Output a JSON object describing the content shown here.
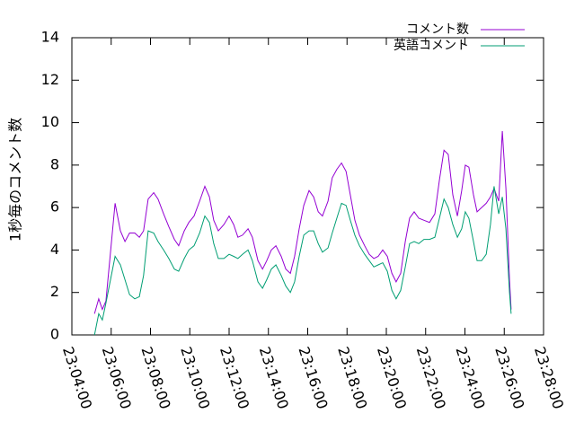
{
  "chart_data": {
    "type": "line",
    "ylabel": "1秒毎のコメント数",
    "x": [
      "23:05:09",
      "23:05:22",
      "23:05:33",
      "23:05:44",
      "23:06:12",
      "23:06:28",
      "23:06:42",
      "23:06:56",
      "23:07:12",
      "23:07:26",
      "23:07:39",
      "23:07:53",
      "23:08:10",
      "23:08:23",
      "23:08:40",
      "23:08:56",
      "23:09:13",
      "23:09:26",
      "23:09:43",
      "23:09:57",
      "23:10:13",
      "23:10:30",
      "23:10:46",
      "23:11:00",
      "23:11:13",
      "23:11:27",
      "23:11:44",
      "23:12:00",
      "23:12:14",
      "23:12:27",
      "23:12:41",
      "23:12:58",
      "23:13:11",
      "23:13:28",
      "23:13:42",
      "23:13:55",
      "23:14:09",
      "23:14:23",
      "23:14:39",
      "23:14:53",
      "23:15:07",
      "23:15:20",
      "23:15:34",
      "23:15:48",
      "23:16:04",
      "23:16:18",
      "23:16:32",
      "23:16:45",
      "23:17:02",
      "23:17:15",
      "23:17:29",
      "23:17:43",
      "23:17:57",
      "23:18:10",
      "23:18:24",
      "23:18:38",
      "23:18:54",
      "23:19:08",
      "23:19:22",
      "23:19:35",
      "23:19:49",
      "23:20:03",
      "23:20:17",
      "23:20:30",
      "23:20:44",
      "23:20:58",
      "23:21:11",
      "23:21:25",
      "23:21:39",
      "23:21:55",
      "23:22:12",
      "23:22:28",
      "23:22:42",
      "23:22:56",
      "23:23:09",
      "23:23:23",
      "23:23:37",
      "23:23:50",
      "23:24:01",
      "23:24:12",
      "23:24:26",
      "23:24:37",
      "23:24:51",
      "23:25:05",
      "23:25:18",
      "23:25:29",
      "23:25:43",
      "23:25:54",
      "23:26:05",
      "23:26:16",
      "23:26:21"
    ],
    "series": [
      {
        "name": "コメント数",
        "color": "#9400d3",
        "values": [
          1.0,
          1.7,
          1.2,
          1.6,
          6.2,
          4.9,
          4.4,
          4.8,
          4.8,
          4.6,
          4.9,
          6.4,
          6.7,
          6.4,
          5.7,
          5.1,
          4.5,
          4.2,
          4.9,
          5.3,
          5.6,
          6.3,
          7.0,
          6.5,
          5.4,
          4.9,
          5.2,
          5.6,
          5.2,
          4.6,
          4.7,
          5.0,
          4.6,
          3.5,
          3.1,
          3.5,
          4.0,
          4.2,
          3.7,
          3.1,
          2.9,
          3.7,
          5.0,
          6.1,
          6.8,
          6.5,
          5.8,
          5.6,
          6.3,
          7.4,
          7.8,
          8.1,
          7.7,
          6.6,
          5.4,
          4.7,
          4.2,
          3.8,
          3.6,
          3.7,
          4.0,
          3.7,
          2.9,
          2.5,
          2.9,
          4.4,
          5.5,
          5.8,
          5.5,
          5.4,
          5.3,
          5.7,
          7.3,
          8.7,
          8.5,
          6.6,
          5.6,
          6.8,
          8.0,
          7.9,
          6.6,
          5.8,
          6.0,
          6.2,
          6.5,
          6.9,
          6.3,
          9.6,
          6.9,
          2.6,
          1.2
        ]
      },
      {
        "name": "英語コメント",
        "color": "#009e73",
        "values": [
          0.0,
          1.0,
          0.7,
          1.5,
          3.7,
          3.3,
          2.6,
          1.9,
          1.7,
          1.8,
          2.8,
          4.9,
          4.8,
          4.4,
          4.0,
          3.6,
          3.1,
          3.0,
          3.6,
          4.0,
          4.2,
          4.8,
          5.6,
          5.3,
          4.3,
          3.6,
          3.6,
          3.8,
          3.7,
          3.6,
          3.8,
          4.0,
          3.5,
          2.5,
          2.2,
          2.6,
          3.1,
          3.3,
          2.8,
          2.3,
          2.0,
          2.5,
          3.7,
          4.7,
          4.9,
          4.9,
          4.3,
          3.9,
          4.1,
          4.8,
          5.5,
          6.2,
          6.1,
          5.4,
          4.7,
          4.2,
          3.8,
          3.5,
          3.2,
          3.3,
          3.4,
          3.0,
          2.1,
          1.7,
          2.1,
          3.2,
          4.3,
          4.4,
          4.3,
          4.5,
          4.5,
          4.6,
          5.5,
          6.4,
          6.0,
          5.2,
          4.6,
          5.0,
          5.8,
          5.5,
          4.4,
          3.5,
          3.5,
          3.8,
          5.2,
          7.0,
          5.7,
          6.5,
          5.0,
          2.0,
          1.0
        ]
      }
    ],
    "xlim": [
      "23:04:00",
      "23:28:00"
    ],
    "xticks": [
      "23:04:00",
      "23:06:00",
      "23:08:00",
      "23:10:00",
      "23:12:00",
      "23:14:00",
      "23:16:00",
      "23:18:00",
      "23:20:00",
      "23:22:00",
      "23:24:00",
      "23:26:00",
      "23:28:00"
    ],
    "ylim": [
      0,
      14
    ],
    "yticks": [
      0,
      2,
      4,
      6,
      8,
      10,
      12,
      14
    ],
    "legend": "top-right"
  }
}
